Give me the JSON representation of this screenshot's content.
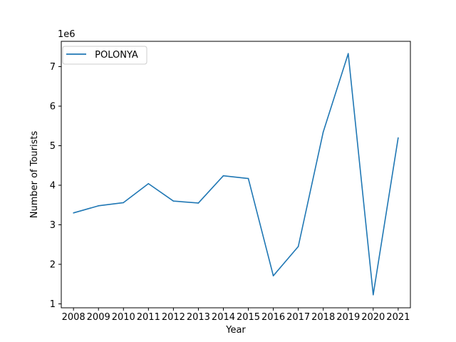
{
  "chart_data": {
    "type": "line",
    "title": "",
    "xlabel": "Year",
    "ylabel": "Number of Tourists",
    "y_scale_label": "1e6",
    "x": [
      "2008",
      "2009",
      "2010",
      "2011",
      "2012",
      "2013",
      "2014",
      "2015",
      "2016",
      "2017",
      "2018",
      "2019",
      "2020",
      "2021"
    ],
    "series": [
      {
        "name": " POLONYA",
        "color": "#1f77b4",
        "values": [
          3300000,
          3480000,
          3560000,
          4040000,
          3600000,
          3550000,
          4240000,
          4170000,
          1710000,
          2450000,
          5350000,
          7330000,
          1230000,
          5200000
        ]
      }
    ],
    "yticks": [
      1,
      2,
      3,
      4,
      5,
      6,
      7
    ],
    "ylim": [
      900000,
      7640000
    ],
    "grid": false,
    "legend_position": "upper-left"
  }
}
